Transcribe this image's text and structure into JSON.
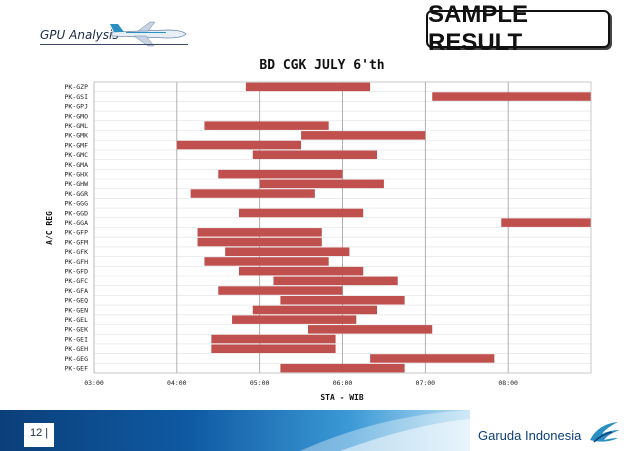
{
  "header": {
    "title": "GPU Analysis",
    "badge": "SAMPLE RESULT"
  },
  "footer": {
    "page_number": "12 |",
    "brand": "Garuda Indonesia"
  },
  "chart_data": {
    "type": "bar",
    "orientation": "horizontal-gantt",
    "title": "BD CGK JULY 6'th",
    "xlabel": "STA - WIB",
    "ylabel": "A/C REG",
    "x_ticks": [
      "03:00",
      "04:00",
      "05:00",
      "06:00",
      "07:00",
      "08:00"
    ],
    "xlim": [
      "03:00",
      "09:00"
    ],
    "grid": "vertical",
    "bar_color": "#c0504d",
    "categories": [
      "PK-GZP",
      "PK-GSI",
      "PK-GPJ",
      "PK-GMO",
      "PK-GML",
      "PK-GMK",
      "PK-GMF",
      "PK-GMC",
      "PK-GMA",
      "PK-GHX",
      "PK-GHW",
      "PK-GGR",
      "PK-GGG",
      "PK-GGD",
      "PK-GGA",
      "PK-GFP",
      "PK-GFM",
      "PK-GFK",
      "PK-GFH",
      "PK-GFD",
      "PK-GFC",
      "PK-GFA",
      "PK-GEQ",
      "PK-GEN",
      "PK-GEL",
      "PK-GEK",
      "PK-GEI",
      "PK-GEH",
      "PK-GEG",
      "PK-GEF"
    ],
    "intervals": [
      {
        "reg": "PK-GZP",
        "start": "04:50",
        "end": "06:20"
      },
      {
        "reg": "PK-GSI",
        "start": "07:05",
        "end": "09:00"
      },
      {
        "reg": "PK-GPJ",
        "start": null,
        "end": null
      },
      {
        "reg": "PK-GMO",
        "start": null,
        "end": null
      },
      {
        "reg": "PK-GML",
        "start": "04:20",
        "end": "05:50"
      },
      {
        "reg": "PK-GMK",
        "start": "05:30",
        "end": "07:00"
      },
      {
        "reg": "PK-GMF",
        "start": "04:00",
        "end": "05:30"
      },
      {
        "reg": "PK-GMC",
        "start": "04:55",
        "end": "06:25"
      },
      {
        "reg": "PK-GMA",
        "start": null,
        "end": null
      },
      {
        "reg": "PK-GHX",
        "start": "04:30",
        "end": "06:00"
      },
      {
        "reg": "PK-GHW",
        "start": "05:00",
        "end": "06:30"
      },
      {
        "reg": "PK-GGR",
        "start": "04:10",
        "end": "05:40"
      },
      {
        "reg": "PK-GGG",
        "start": null,
        "end": null
      },
      {
        "reg": "PK-GGD",
        "start": "04:45",
        "end": "06:15"
      },
      {
        "reg": "PK-GGA",
        "start": "07:55",
        "end": "09:00"
      },
      {
        "reg": "PK-GFP",
        "start": "04:15",
        "end": "05:45"
      },
      {
        "reg": "PK-GFM",
        "start": "04:15",
        "end": "05:45"
      },
      {
        "reg": "PK-GFK",
        "start": "04:35",
        "end": "06:05"
      },
      {
        "reg": "PK-GFH",
        "start": "04:20",
        "end": "05:50"
      },
      {
        "reg": "PK-GFD",
        "start": "04:45",
        "end": "06:15"
      },
      {
        "reg": "PK-GFC",
        "start": "05:10",
        "end": "06:40"
      },
      {
        "reg": "PK-GFA",
        "start": "04:30",
        "end": "06:00"
      },
      {
        "reg": "PK-GEQ",
        "start": "05:15",
        "end": "06:45"
      },
      {
        "reg": "PK-GEN",
        "start": "04:55",
        "end": "06:25"
      },
      {
        "reg": "PK-GEL",
        "start": "04:40",
        "end": "06:10"
      },
      {
        "reg": "PK-GEK",
        "start": "05:35",
        "end": "07:05"
      },
      {
        "reg": "PK-GEI",
        "start": "04:25",
        "end": "05:55"
      },
      {
        "reg": "PK-GEH",
        "start": "04:25",
        "end": "05:55"
      },
      {
        "reg": "PK-GEG",
        "start": "06:20",
        "end": "07:50"
      },
      {
        "reg": "PK-GEF",
        "start": "05:15",
        "end": "06:45"
      }
    ]
  }
}
